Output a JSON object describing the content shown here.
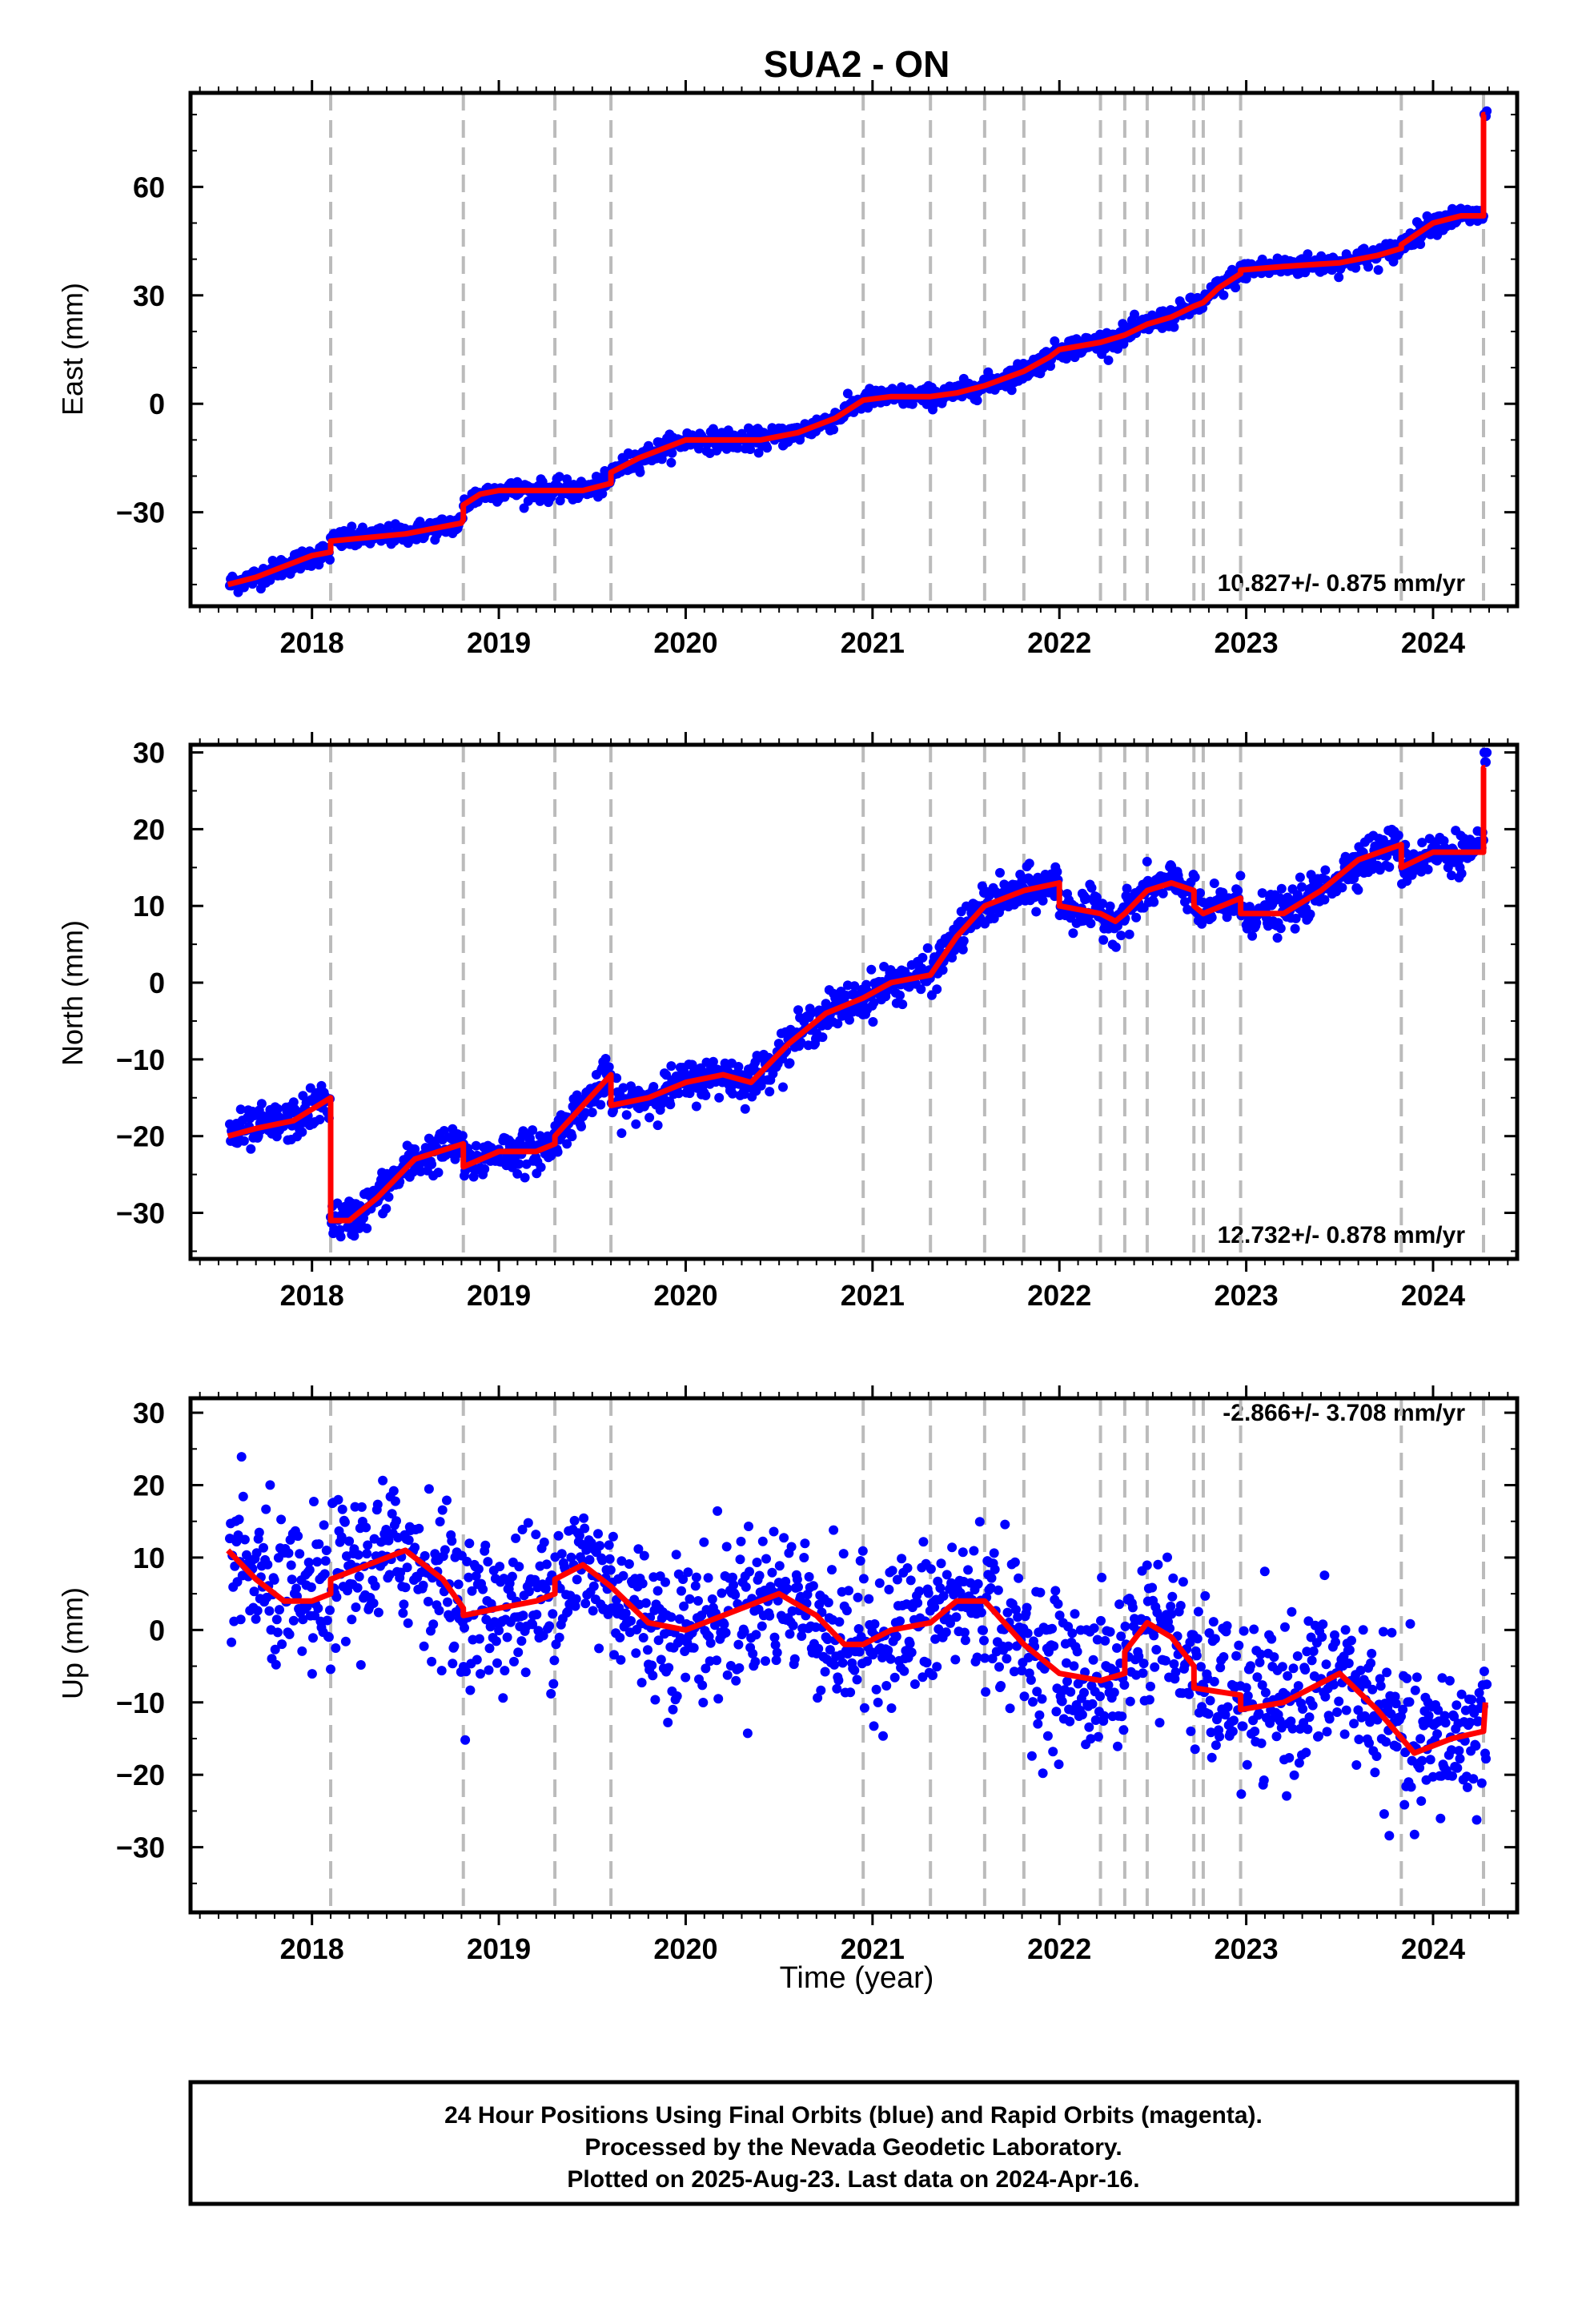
{
  "chart_data": {
    "type": "scatter",
    "title": "SUA2 - ON",
    "xlabel": "Time (year)",
    "x_ticks": [
      2018,
      2019,
      2020,
      2021,
      2022,
      2023,
      2024
    ],
    "xlim": [
      2017.35,
      2024.45
    ],
    "vertical_markers_year": [
      2018.1,
      2018.81,
      2019.3,
      2019.6,
      2020.95,
      2021.31,
      2021.6,
      2021.81,
      2022.22,
      2022.35,
      2022.47,
      2022.72,
      2022.77,
      2022.97,
      2023.83,
      2024.27
    ],
    "colors": {
      "final_orbits": "#0000ff",
      "model": "#ff0000",
      "markers": "#bbbbbb"
    },
    "panels": [
      {
        "ylabel": "East (mm)",
        "ylim": [
          -56,
          86
        ],
        "yticks": [
          -30,
          0,
          30,
          60
        ],
        "rate_label": "10.827+/- 0.875 mm/yr",
        "rate_position": "bottom-right",
        "series": [
          {
            "type": "line",
            "x": [
              2017.55,
              2017.7,
              2017.85,
              2018.0,
              2018.1,
              2018.1,
              2018.3,
              2018.5,
              2018.7,
              2018.8,
              2018.81,
              2018.81,
              2018.9,
              2019.0,
              2019.15,
              2019.3,
              2019.3,
              2019.45,
              2019.6,
              2019.6,
              2019.75,
              2019.9,
              2020.0,
              2020.2,
              2020.4,
              2020.6,
              2020.8,
              2020.95,
              2020.95,
              2021.1,
              2021.31,
              2021.31,
              2021.45,
              2021.6,
              2021.6,
              2021.81,
              2021.81,
              2021.95,
              2022.0,
              2022.22,
              2022.22,
              2022.35,
              2022.35,
              2022.47,
              2022.47,
              2022.6,
              2022.72,
              2022.72,
              2022.77,
              2022.77,
              2022.85,
              2022.97,
              2022.97,
              2023.2,
              2023.5,
              2023.7,
              2023.83,
              2023.83,
              2024.0,
              2024.15,
              2024.27,
              2024.27,
              2024.28
            ],
            "y": [
              -50,
              -48,
              -45,
              -42,
              -41,
              -38,
              -37,
              -36,
              -34,
              -33,
              -32,
              -28,
              -25,
              -24,
              -24,
              -24,
              -24,
              -24,
              -22,
              -19,
              -15,
              -12,
              -10,
              -10,
              -10,
              -8,
              -4,
              1,
              1,
              2,
              2,
              2,
              3,
              5,
              5,
              9,
              9,
              13,
              15,
              17,
              17,
              19,
              19,
              22,
              22,
              24,
              27,
              27,
              28,
              28,
              32,
              36,
              37,
              38,
              39,
              41,
              43,
              44,
              50,
              52,
              52,
              80,
              80
            ]
          }
        ]
      },
      {
        "ylabel": "North (mm)",
        "ylim": [
          -36,
          31
        ],
        "yticks": [
          -30,
          -20,
          -10,
          0,
          10,
          20,
          30
        ],
        "rate_label": "12.732+/- 0.878 mm/yr",
        "rate_position": "bottom-right",
        "series": [
          {
            "type": "line",
            "x": [
              2017.55,
              2017.7,
              2017.9,
              2018.1,
              2018.1,
              2018.2,
              2018.35,
              2018.55,
              2018.81,
              2018.81,
              2019.0,
              2019.2,
              2019.3,
              2019.3,
              2019.45,
              2019.6,
              2019.6,
              2019.8,
              2020.0,
              2020.2,
              2020.35,
              2020.55,
              2020.75,
              2020.95,
              2020.95,
              2021.1,
              2021.31,
              2021.31,
              2021.45,
              2021.6,
              2021.6,
              2021.81,
              2021.81,
              2022.0,
              2022.0,
              2022.22,
              2022.22,
              2022.3,
              2022.35,
              2022.35,
              2022.47,
              2022.47,
              2022.6,
              2022.72,
              2022.72,
              2022.77,
              2022.77,
              2022.97,
              2022.97,
              2023.2,
              2023.4,
              2023.6,
              2023.83,
              2023.83,
              2024.0,
              2024.15,
              2024.27,
              2024.27,
              2024.28
            ],
            "y": [
              -20,
              -19,
              -18,
              -15,
              -31,
              -31,
              -28,
              -23,
              -21,
              -24,
              -22,
              -22,
              -21,
              -20,
              -16,
              -12,
              -16,
              -15,
              -13,
              -12,
              -13,
              -8,
              -4,
              -2,
              -2,
              0,
              1,
              1,
              6,
              10,
              10,
              12,
              12,
              13,
              10,
              9,
              9,
              8,
              9,
              9,
              12,
              12,
              13,
              12,
              10,
              9,
              9,
              11,
              9,
              9,
              12,
              16,
              18,
              15,
              17,
              17,
              17,
              28,
              28
            ]
          }
        ]
      },
      {
        "ylabel": "Up (mm)",
        "ylim": [
          -39,
          32
        ],
        "yticks": [
          -30,
          -20,
          -10,
          0,
          10,
          20,
          30
        ],
        "rate_label": "-2.866+/- 3.708 mm/yr",
        "rate_position": "top-right",
        "series": [
          {
            "type": "line",
            "x": [
              2017.55,
              2017.7,
              2017.85,
              2018.0,
              2018.1,
              2018.1,
              2018.3,
              2018.5,
              2018.7,
              2018.81,
              2018.81,
              2019.0,
              2019.2,
              2019.3,
              2019.3,
              2019.45,
              2019.6,
              2019.8,
              2020.0,
              2020.2,
              2020.4,
              2020.5,
              2020.7,
              2020.85,
              2020.95,
              2021.1,
              2021.31,
              2021.31,
              2021.45,
              2021.6,
              2021.81,
              2022.0,
              2022.22,
              2022.22,
              2022.35,
              2022.35,
              2022.47,
              2022.6,
              2022.72,
              2022.72,
              2022.97,
              2022.97,
              2023.2,
              2023.5,
              2023.7,
              2023.9,
              2024.1,
              2024.27,
              2024.28
            ],
            "y": [
              11,
              7,
              4,
              4,
              5,
              7,
              9,
              11,
              7,
              3,
              2,
              3,
              4,
              5,
              7,
              9,
              6,
              1,
              0,
              2,
              4,
              5,
              2,
              -2,
              -2,
              0,
              1,
              1,
              4,
              4,
              -2,
              -6,
              -7,
              -7,
              -6,
              -3,
              1,
              -1,
              -5,
              -8,
              -9,
              -11,
              -10,
              -6,
              -11,
              -17,
              -15,
              -14,
              -10
            ]
          }
        ]
      }
    ]
  },
  "footer": {
    "lines": [
      "24 Hour Positions Using Final Orbits (blue) and Rapid Orbits (magenta).",
      "Processed by the Nevada Geodetic Laboratory.",
      "Plotted on 2025-Aug-23. Last data on 2024-Apr-16."
    ]
  }
}
